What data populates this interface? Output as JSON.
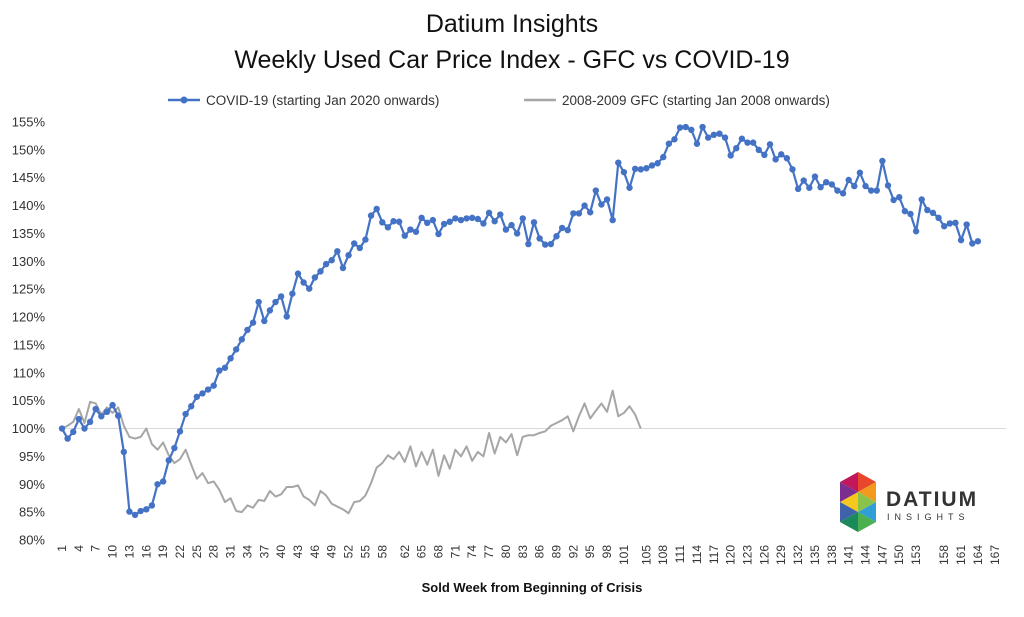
{
  "chart_data": {
    "type": "line",
    "title": "Datium Insights",
    "subtitle": "Weekly Used Car Price Index - GFC vs COVID-19",
    "xlabel": "Sold Week from Beginning of Crisis",
    "ylabel": "",
    "ylim": [
      0.8,
      1.55
    ],
    "y_ticks": [
      "80%",
      "85%",
      "90%",
      "95%",
      "100%",
      "105%",
      "110%",
      "115%",
      "120%",
      "125%",
      "130%",
      "135%",
      "140%",
      "145%",
      "150%",
      "155%"
    ],
    "x_tick_labels": [
      1,
      4,
      7,
      10,
      13,
      16,
      19,
      22,
      25,
      28,
      31,
      34,
      37,
      40,
      43,
      46,
      49,
      52,
      55,
      58,
      62,
      65,
      68,
      71,
      74,
      77,
      80,
      83,
      86,
      89,
      92,
      95,
      98,
      101,
      105,
      108,
      111,
      114,
      117,
      120,
      123,
      126,
      129,
      132,
      135,
      138,
      141,
      144,
      147,
      150,
      153,
      158,
      161,
      164,
      167
    ],
    "reference_line": 1.0,
    "legend_position": "top",
    "series": [
      {
        "name": "COVID-19 (starting Jan 2020 onwards)",
        "color": "#4472C4",
        "marker": "circle",
        "values": [
          1.0,
          0.982,
          0.994,
          1.017,
          1.0,
          1.012,
          1.035,
          1.022,
          1.03,
          1.042,
          1.023,
          0.958,
          0.851,
          0.845,
          0.852,
          0.855,
          0.862,
          0.9,
          0.905,
          0.943,
          0.965,
          0.995,
          1.026,
          1.04,
          1.057,
          1.063,
          1.07,
          1.077,
          1.104,
          1.109,
          1.126,
          1.142,
          1.16,
          1.177,
          1.19,
          1.227,
          1.193,
          1.212,
          1.227,
          1.237,
          1.201,
          1.242,
          1.278,
          1.262,
          1.251,
          1.271,
          1.282,
          1.295,
          1.302,
          1.318,
          1.288,
          1.311,
          1.332,
          1.324,
          1.339,
          1.382,
          1.394,
          1.37,
          1.361,
          1.372,
          1.371,
          1.346,
          1.357,
          1.353,
          1.378,
          1.369,
          1.374,
          1.349,
          1.367,
          1.371,
          1.377,
          1.374,
          1.377,
          1.378,
          1.376,
          1.368,
          1.387,
          1.372,
          1.384,
          1.357,
          1.365,
          1.35,
          1.377,
          1.331,
          1.37,
          1.341,
          1.33,
          1.331,
          1.345,
          1.36,
          1.356,
          1.386,
          1.386,
          1.4,
          1.388,
          1.427,
          1.402,
          1.411,
          1.374,
          1.477,
          1.46,
          1.432,
          1.466,
          1.465,
          1.467,
          1.472,
          1.476,
          1.487,
          1.511,
          1.519,
          1.54,
          1.541,
          1.536,
          1.511,
          1.541,
          1.522,
          1.527,
          1.529,
          1.522,
          1.49,
          1.503,
          1.52,
          1.513,
          1.513,
          1.5,
          1.491,
          1.51,
          1.483,
          1.492,
          1.485,
          1.465,
          1.43,
          1.445,
          1.432,
          1.452,
          1.433,
          1.442,
          1.438,
          1.427,
          1.422,
          1.446,
          1.435,
          1.459,
          1.435,
          1.427,
          1.427,
          1.48,
          1.436,
          1.41,
          1.415,
          1.39,
          1.385,
          1.354,
          1.411,
          1.392,
          1.387,
          1.378,
          1.363,
          1.368,
          1.369,
          1.338,
          1.366,
          1.332,
          1.336
        ]
      },
      {
        "name": "2008-2009 GFC (starting Jan 2008 onwards)",
        "color": "#A6A6A6",
        "marker": "none",
        "values": [
          1.0,
          1.005,
          1.012,
          1.035,
          1.01,
          1.048,
          1.045,
          1.025,
          1.038,
          1.028,
          1.038,
          1.005,
          0.985,
          0.982,
          0.985,
          1.0,
          0.972,
          0.962,
          0.975,
          0.952,
          0.938,
          0.945,
          0.962,
          0.935,
          0.91,
          0.92,
          0.902,
          0.905,
          0.89,
          0.868,
          0.875,
          0.852,
          0.85,
          0.862,
          0.858,
          0.872,
          0.87,
          0.888,
          0.878,
          0.882,
          0.895,
          0.895,
          0.898,
          0.878,
          0.872,
          0.862,
          0.888,
          0.88,
          0.865,
          0.86,
          0.855,
          0.848,
          0.868,
          0.87,
          0.88,
          0.902,
          0.93,
          0.938,
          0.952,
          0.945,
          0.958,
          0.94,
          0.968,
          0.932,
          0.958,
          0.935,
          0.962,
          0.915,
          0.952,
          0.928,
          0.962,
          0.95,
          0.968,
          0.942,
          0.958,
          0.95,
          0.992,
          0.955,
          0.985,
          0.975,
          0.99,
          0.952,
          0.985,
          0.988,
          0.988,
          0.992,
          0.995,
          1.005,
          1.01,
          1.015,
          1.022,
          0.995,
          1.022,
          1.045,
          1.018,
          1.032,
          1.045,
          1.03,
          1.068,
          1.022,
          1.028,
          1.04,
          1.025,
          1.0
        ]
      }
    ]
  },
  "logo": {
    "name": "DATIUM",
    "sub": "INSIGHTS"
  }
}
